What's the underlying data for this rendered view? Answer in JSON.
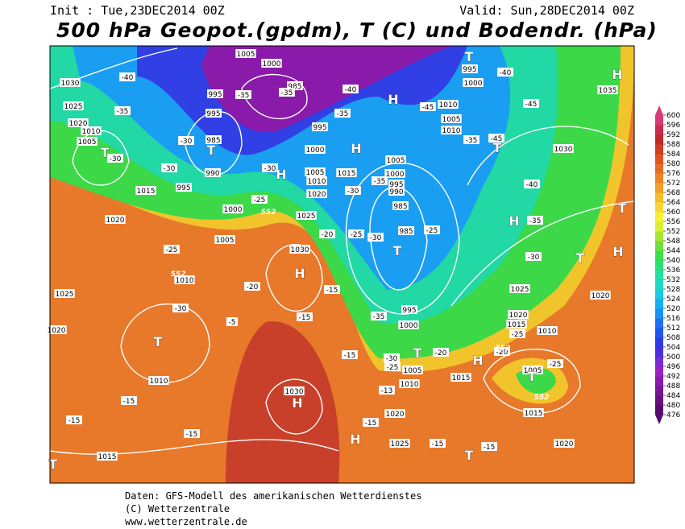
{
  "header": {
    "init": "Init : Tue,23DEC2014 00Z",
    "valid": "Valid: Sun,28DEC2014 00Z",
    "title": "500 hPa Geopot.(gpdm), T (C) und Bodendr. (hPa)"
  },
  "map": {
    "isobar_labels": [
      "1005",
      "1000",
      "985",
      "995",
      "995",
      "985",
      "990",
      "995",
      "1000",
      "1005",
      "1010",
      "1030",
      "1025",
      "1020",
      "1010",
      "1005",
      "1015",
      "1020",
      "1025",
      "1020",
      "1010",
      "1015",
      "1030",
      "1030",
      "1025",
      "1020",
      "1005",
      "1010",
      "1015",
      "995",
      "1000",
      "1005",
      "1000",
      "995",
      "990",
      "985",
      "985",
      "995",
      "1000",
      "1005",
      "1010",
      "1020",
      "1025",
      "1015",
      "995",
      "1000",
      "1010",
      "1005",
      "1010",
      "1030",
      "1035",
      "1025",
      "1020",
      "1015",
      "1010",
      "1005",
      "1015",
      "1020",
      "1020"
    ],
    "temperature_labels": [
      "-40",
      "-35",
      "-30",
      "-30",
      "-30",
      "-35",
      "-35",
      "-40",
      "-35",
      "-30",
      "-25",
      "-25",
      "-20",
      "-20",
      "-15",
      "-15",
      "-5",
      "-30",
      "-15",
      "-15",
      "-15",
      "-30",
      "-35",
      "-30",
      "-25",
      "-35",
      "-30",
      "-25",
      "-20",
      "-15",
      "-13",
      "-15",
      "-15",
      "-15",
      "-25",
      "-35",
      "-30",
      "-40",
      "-45",
      "-40",
      "-45",
      "-45",
      "-35",
      "-25",
      "-20",
      "-25"
    ],
    "centers": [
      "T",
      "T",
      "T",
      "T",
      "T",
      "T",
      "T",
      "T",
      "T",
      "T",
      "T",
      "T",
      "H",
      "H",
      "H",
      "H",
      "H",
      "H",
      "H",
      "H",
      "H",
      "H"
    ],
    "contour_labels": [
      "552",
      "552",
      "552",
      "552"
    ]
  },
  "colorbar": {
    "ticks": [
      476,
      480,
      484,
      488,
      492,
      496,
      500,
      504,
      508,
      512,
      516,
      520,
      524,
      528,
      532,
      536,
      540,
      544,
      548,
      552,
      556,
      560,
      564,
      568,
      572,
      576,
      580,
      584,
      588,
      592,
      596,
      600
    ],
    "colors": [
      "#5a0a6e",
      "#6a0f82",
      "#7a1496",
      "#8a1aaa",
      "#9a20c0",
      "#7a2ad6",
      "#4a2ee0",
      "#2d3ae6",
      "#1f55ee",
      "#1a72f2",
      "#1890f5",
      "#17aef0",
      "#1ac8e0",
      "#1fd8c4",
      "#22e0a0",
      "#28e070",
      "#3ce048",
      "#70e038",
      "#a8e830",
      "#d8f030",
      "#f6f032",
      "#f8d830",
      "#f6bc2c",
      "#f2a028",
      "#ee8424",
      "#e86a22",
      "#de5220",
      "#d03c22",
      "#c02a2a",
      "#c82a52",
      "#d83a78"
    ]
  },
  "footer": {
    "lines": [
      "Daten: GFS-Modell des amerikanischen Wetterdienstes",
      "(C) Wetterzentrale",
      "www.wetterzentrale.de"
    ]
  }
}
